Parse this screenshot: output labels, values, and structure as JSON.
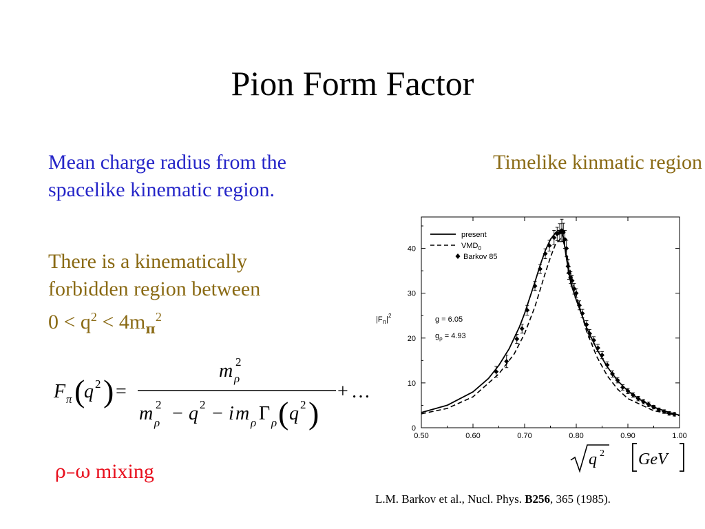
{
  "title": "Pion Form Factor",
  "left": {
    "paragraph1_line1": "Mean charge radius from the",
    "paragraph1_line2": "spacelike kinematic region.",
    "paragraph2_line1": "There is a kinematically",
    "paragraph2_line2": "forbidden region between",
    "paragraph2_line3_prefix": "0 < q",
    "paragraph2_line3_mid": " < 4m",
    "paragraph2_line3_sub": "π",
    "paragraph2_line3_sup": "2",
    "sup2": "2"
  },
  "right_heading": "Timelike kinmatic region",
  "mixing": {
    "greek": "ρ–ω",
    "label": " mixing"
  },
  "reference": {
    "prefix": "L.M. Barkov et al., Nucl. Phys. ",
    "volume": "B256",
    "suffix": ", 365 (1985)."
  },
  "formula": {
    "F": "F",
    "pi": "π",
    "q": "q",
    "two": "2",
    "eq": "=",
    "m": "m",
    "rho": "ρ",
    "minus": "−",
    "i": "i",
    "Gamma": "Γ",
    "plus": "+",
    "dots": "…"
  },
  "x_axis_label": {
    "q": "q",
    "two": "2",
    "unit": "GeV"
  },
  "chart_data": {
    "type": "line",
    "ylabel_main": "|F",
    "ylabel_sub": "π",
    "ylabel_close": "|",
    "ylabel_sup": "2",
    "xlim": [
      0.5,
      1.0
    ],
    "ylim": [
      0,
      47
    ],
    "x_ticks": [
      "0.50",
      "0.60",
      "0.70",
      "0.80",
      "0.90",
      "1.00"
    ],
    "y_ticks": [
      "0",
      "10",
      "20",
      "30",
      "40"
    ],
    "annotations": [
      {
        "text_main": "g = 6.05",
        "text_sub": ""
      },
      {
        "text_main": "g",
        "text_sub": "ρ",
        "text_tail": " = 4.93"
      }
    ],
    "legend": {
      "placement": "top-left",
      "entries": [
        {
          "name": "present",
          "style": "solid"
        },
        {
          "name": "VMD",
          "sub": "0",
          "style": "dashed"
        },
        {
          "name": "Barkov 85",
          "style": "marker"
        }
      ]
    },
    "series": [
      {
        "name": "present",
        "style": "solid",
        "x": [
          0.5,
          0.55,
          0.6,
          0.63,
          0.65,
          0.67,
          0.69,
          0.7,
          0.71,
          0.72,
          0.73,
          0.74,
          0.75,
          0.76,
          0.765,
          0.77,
          0.775,
          0.78,
          0.785,
          0.79,
          0.8,
          0.82,
          0.84,
          0.86,
          0.88,
          0.9,
          0.92,
          0.95,
          0.98,
          1.0
        ],
        "y": [
          3.4,
          5.0,
          8.0,
          11.0,
          13.9,
          17.6,
          22.5,
          25.5,
          29.0,
          32.5,
          36.2,
          39.5,
          42.0,
          43.5,
          44.0,
          43.8,
          42.5,
          38.5,
          35.0,
          32.0,
          28.5,
          22.3,
          17.5,
          13.6,
          10.5,
          8.2,
          6.5,
          4.6,
          3.4,
          2.8
        ]
      },
      {
        "name": "VMD0",
        "style": "dashed",
        "x": [
          0.5,
          0.55,
          0.6,
          0.65,
          0.68,
          0.7,
          0.72,
          0.74,
          0.75,
          0.76,
          0.77,
          0.775,
          0.78,
          0.79,
          0.8,
          0.82,
          0.84,
          0.86,
          0.88,
          0.9,
          0.95,
          1.0
        ],
        "y": [
          3.1,
          4.3,
          6.9,
          12.0,
          16.5,
          21.0,
          27.0,
          34.5,
          38.0,
          41.0,
          42.2,
          41.5,
          39.5,
          34.0,
          29.5,
          21.5,
          15.8,
          11.6,
          8.6,
          6.5,
          3.8,
          2.7
        ]
      },
      {
        "name": "Barkov 85",
        "style": "marker",
        "x": [
          0.645,
          0.665,
          0.685,
          0.695,
          0.705,
          0.72,
          0.73,
          0.74,
          0.748,
          0.757,
          0.763,
          0.768,
          0.772,
          0.775,
          0.778,
          0.781,
          0.784,
          0.786,
          0.789,
          0.792,
          0.796,
          0.8,
          0.806,
          0.812,
          0.82,
          0.826,
          0.834,
          0.842,
          0.85,
          0.86,
          0.87,
          0.88,
          0.89,
          0.9,
          0.91,
          0.92,
          0.93,
          0.94,
          0.95,
          0.96,
          0.97,
          0.98,
          0.99
        ],
        "y": [
          12.5,
          14.8,
          19.8,
          22.1,
          26.2,
          31.6,
          35.4,
          38.8,
          40.6,
          42.4,
          43.2,
          43.5,
          44.0,
          43.6,
          42.0,
          40.0,
          36.0,
          34.5,
          33.5,
          32.8,
          31.0,
          30.0,
          27.3,
          25.5,
          23.0,
          21.0,
          19.5,
          17.8,
          16.2,
          14.0,
          12.0,
          10.6,
          9.0,
          8.2,
          7.3,
          6.5,
          5.8,
          5.2,
          4.6,
          4.0,
          3.6,
          3.2,
          3.0
        ],
        "err": [
          1.2,
          1.4,
          1.0,
          1.0,
          1.1,
          1.0,
          1.0,
          1.1,
          1.2,
          1.6,
          1.5,
          2.0,
          2.5,
          2.0,
          2.0,
          1.8,
          1.5,
          1.4,
          1.3,
          1.2,
          1.2,
          1.0,
          1.0,
          0.9,
          0.9,
          0.9,
          0.8,
          0.8,
          0.8,
          0.7,
          0.7,
          0.6,
          0.6,
          0.6,
          0.5,
          0.5,
          0.5,
          0.5,
          0.4,
          0.4,
          0.4,
          0.4,
          0.4
        ]
      }
    ]
  }
}
